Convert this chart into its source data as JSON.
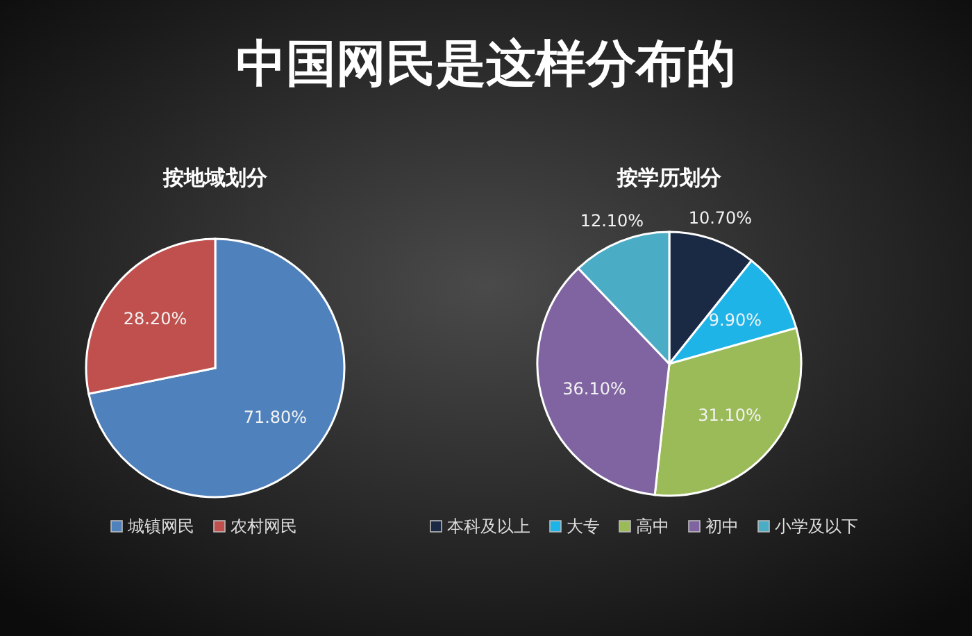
{
  "chart_data": [
    {
      "type": "pie",
      "title": "中国网民是这样分布的",
      "subtitle": "按地域划分",
      "categories": [
        "城镇网民",
        "农村网民"
      ],
      "values": [
        71.8,
        28.2
      ],
      "colors": [
        "#4f81bd",
        "#c0504d"
      ],
      "value_labels": [
        "71.80%",
        "28.20%"
      ],
      "legend": "bottom"
    },
    {
      "type": "pie",
      "subtitle": "按学历划分",
      "categories": [
        "本科及以上",
        "大专",
        "高中",
        "初中",
        "小学及以下"
      ],
      "values": [
        10.7,
        9.9,
        31.1,
        36.1,
        12.1
      ],
      "colors": [
        "#1b2a44",
        "#1fb4e8",
        "#9bbb59",
        "#8064a2",
        "#4bacc6"
      ],
      "value_labels": [
        "10.70%",
        "9.90%",
        "31.10%",
        "36.10%",
        "12.10%"
      ],
      "legend": "bottom"
    }
  ]
}
